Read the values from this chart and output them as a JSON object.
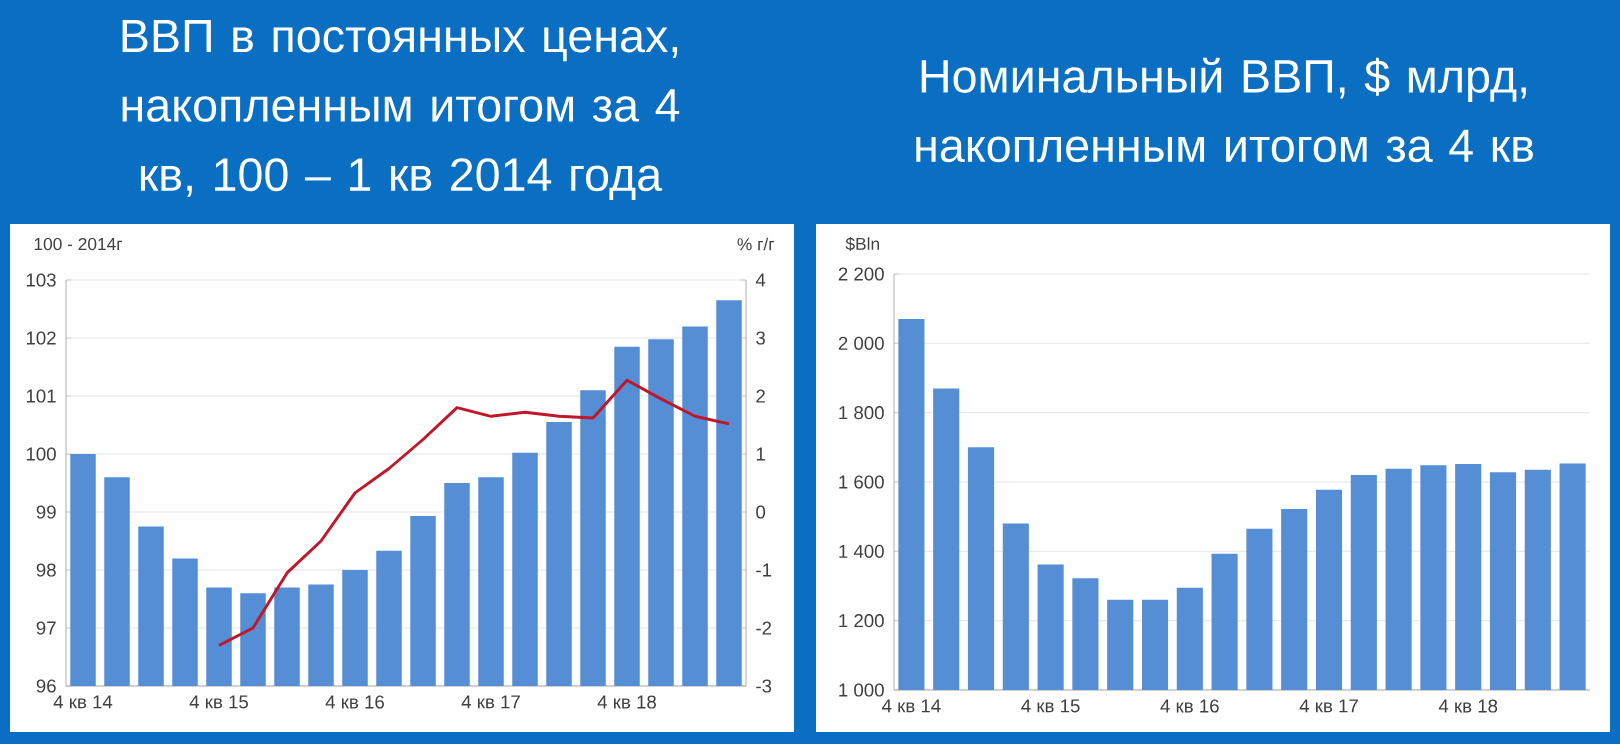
{
  "chart_data": [
    {
      "type": "bar",
      "title": "ВВП в постоянных ценах, накопленным итогом за 4 кв, 100 – 1 кв 2014 года",
      "ylabel": "100 - 2014г",
      "y2label": "% г/г",
      "categories": [
        "4 кв 14",
        null,
        null,
        null,
        "4 кв 15",
        null,
        null,
        null,
        "4 кв 16",
        null,
        null,
        null,
        "4 кв 17",
        null,
        null,
        null,
        "4 кв 18",
        null,
        null,
        null
      ],
      "series": [
        {
          "type": "bar",
          "color": "#558ed5",
          "values": [
            100.0,
            99.6,
            98.75,
            98.2,
            97.7,
            97.6,
            97.7,
            97.75,
            98.0,
            98.33,
            98.93,
            99.5,
            99.6,
            100.02,
            100.55,
            101.1,
            101.85,
            101.98,
            102.2,
            102.65
          ]
        },
        {
          "type": "line",
          "axis": "y2",
          "color": "#c0182a",
          "values": [
            null,
            null,
            null,
            null,
            -2.3,
            -2.0,
            -1.05,
            -0.5,
            0.33,
            0.75,
            1.25,
            1.8,
            1.65,
            1.72,
            1.65,
            1.62,
            2.27,
            1.95,
            1.65,
            1.52
          ]
        }
      ],
      "ylim": [
        96,
        103
      ],
      "yticks": [
        96,
        97,
        98,
        99,
        100,
        101,
        102,
        103
      ],
      "y2lim": [
        -3,
        4
      ],
      "y2ticks": [
        -3,
        -2,
        -1,
        0,
        1,
        2,
        3,
        4
      ],
      "grid": "y"
    },
    {
      "type": "bar",
      "title": "Номинальный ВВП, $ млрд, накопленным итогом за 4 кв",
      "ylabel": "$Bln",
      "categories": [
        "4 кв 14",
        null,
        null,
        null,
        "4 кв 15",
        null,
        null,
        null,
        "4 кв 16",
        null,
        null,
        null,
        "4 кв 17",
        null,
        null,
        null,
        "4 кв 18",
        null,
        null,
        null
      ],
      "color": "#558ed5",
      "values": [
        2070,
        1870,
        1700,
        1480,
        1362,
        1322,
        1260,
        1260,
        1295,
        1393,
        1465,
        1522,
        1578,
        1620,
        1638,
        1648,
        1652,
        1628,
        1635,
        1653
      ],
      "ylim": [
        1000,
        2200
      ],
      "yticks": [
        {
          "value": 1000,
          "label": "1 000"
        },
        {
          "value": 1200,
          "label": "1 200"
        },
        {
          "value": 1400,
          "label": "1 400"
        },
        {
          "value": 1600,
          "label": "1 600"
        },
        {
          "value": 1800,
          "label": "1 800"
        },
        {
          "value": 2000,
          "label": "2 000"
        },
        {
          "value": 2200,
          "label": "2 200"
        }
      ],
      "grid": "y"
    }
  ]
}
